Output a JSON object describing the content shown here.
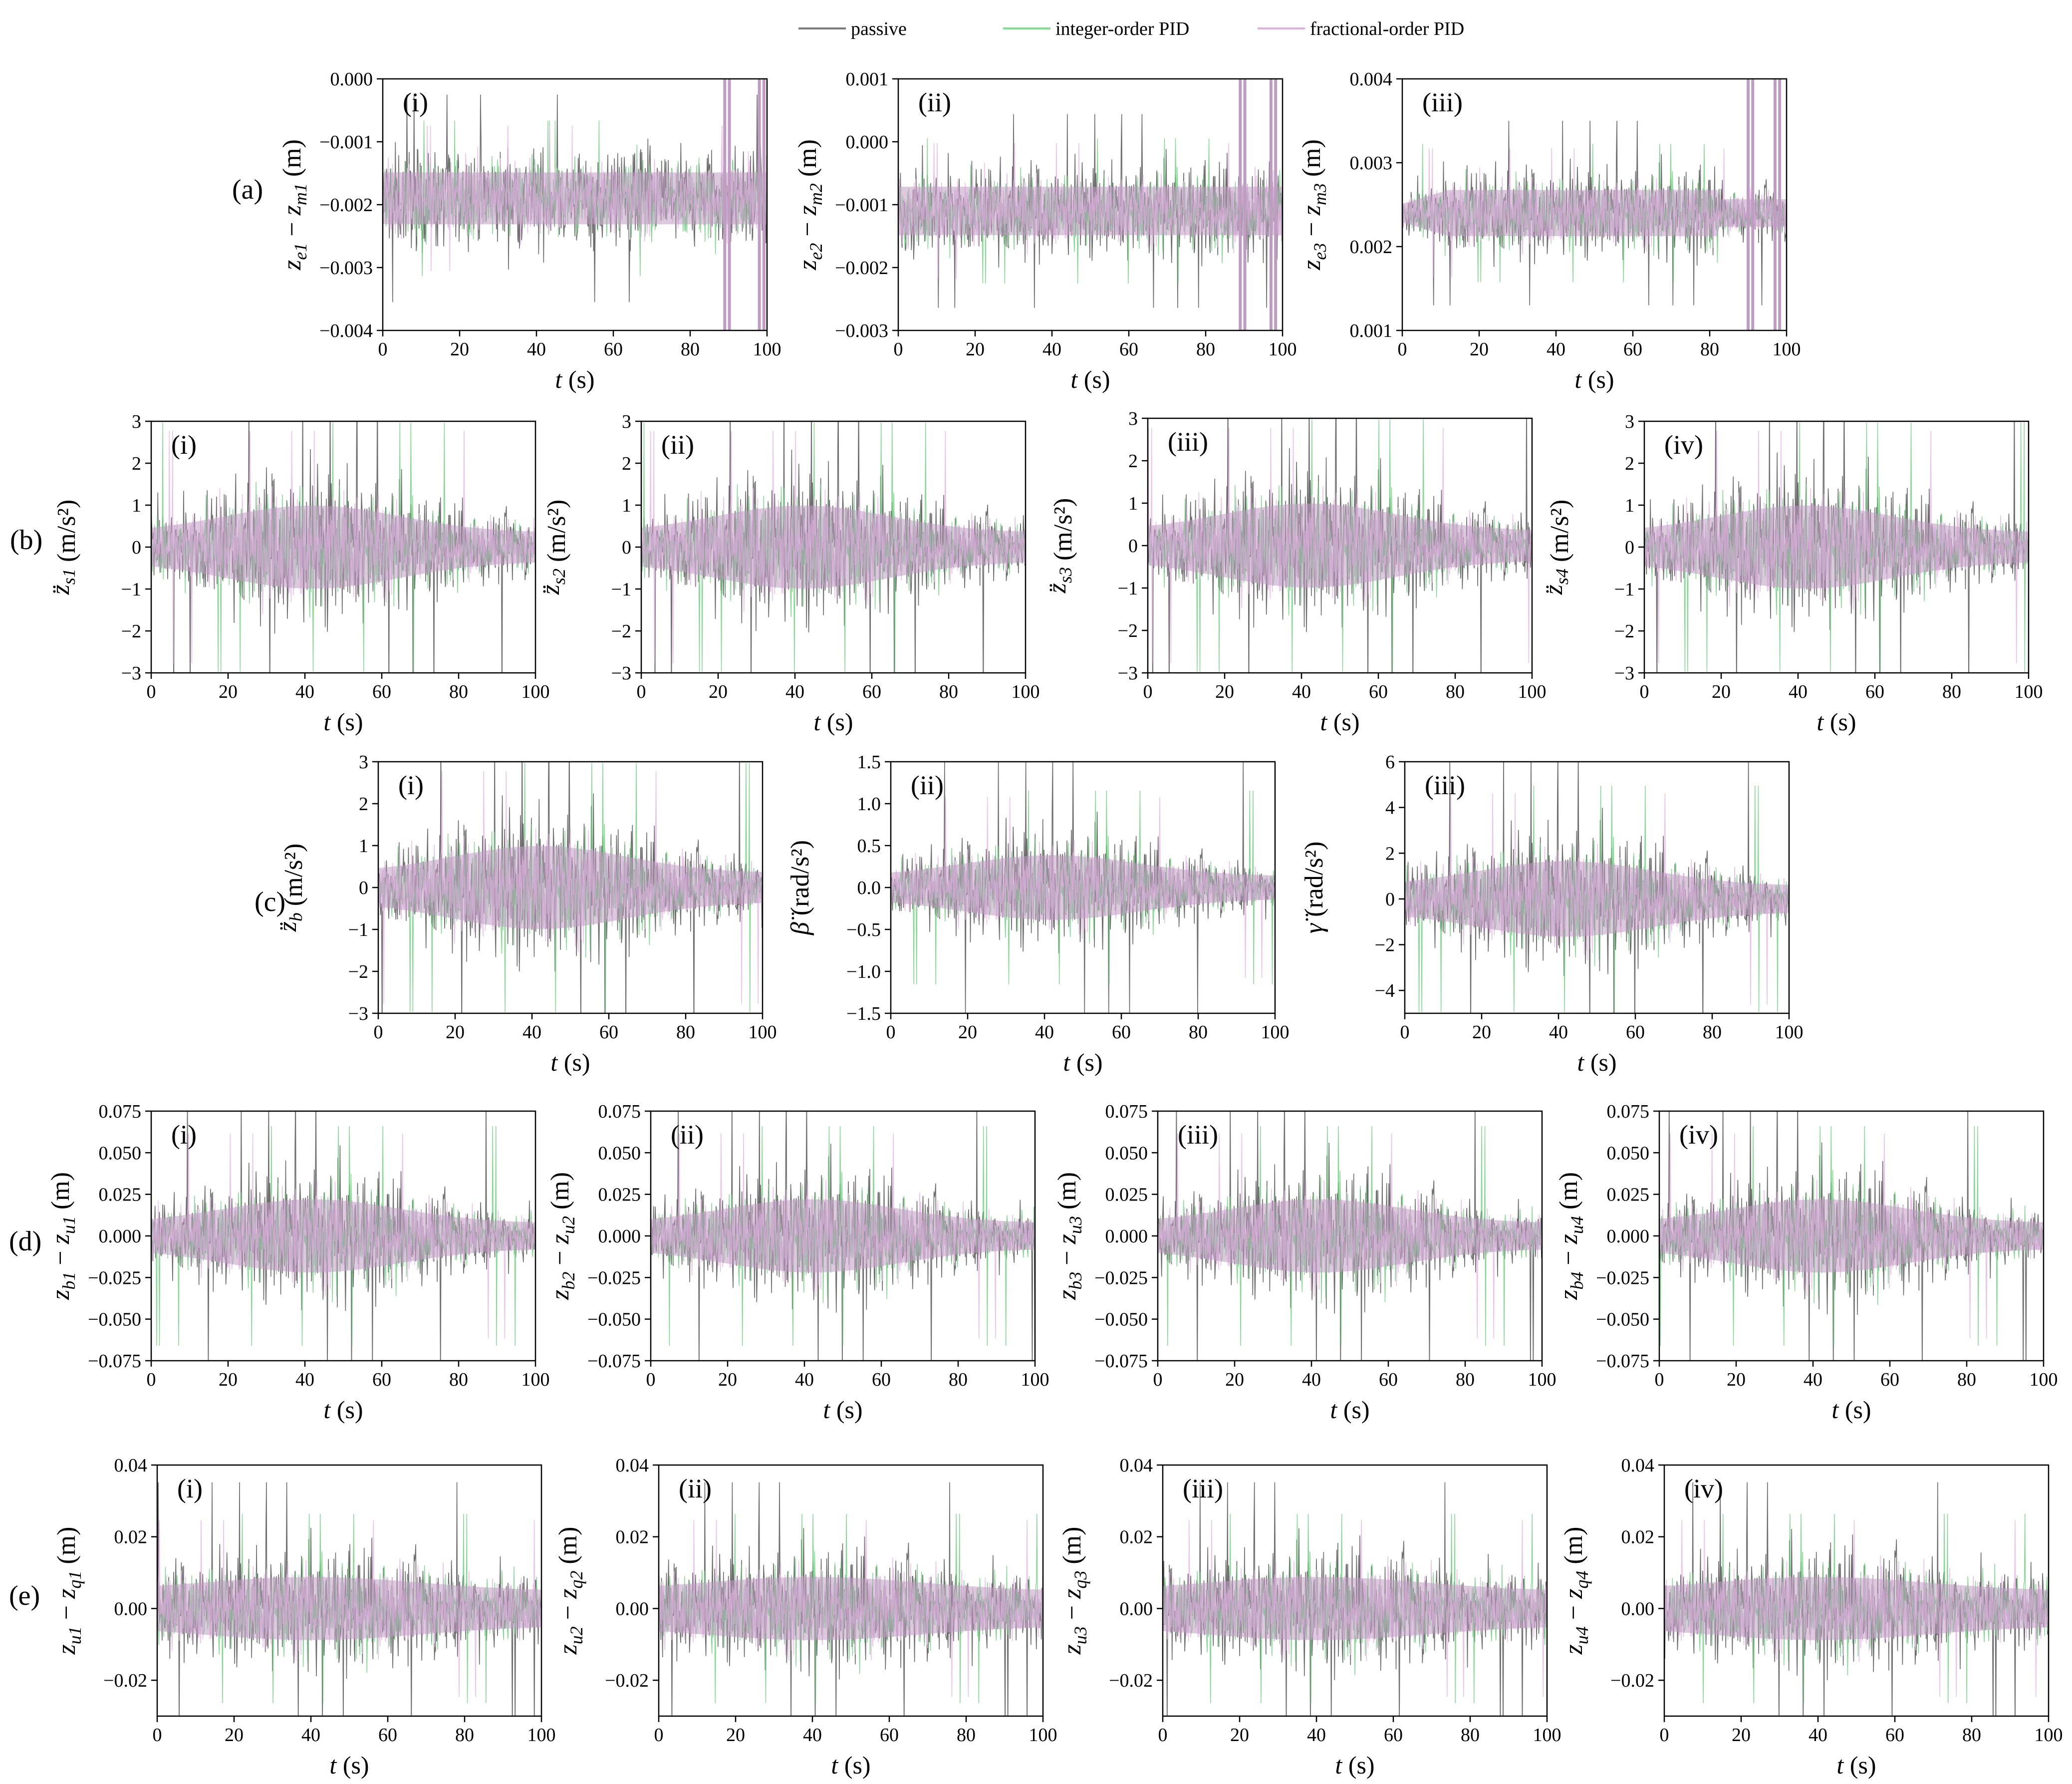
{
  "legend": [
    {
      "name": "passive",
      "color": "#7a7a7a"
    },
    {
      "name": "integer-order PID",
      "color": "#7ee08a"
    },
    {
      "name": "fractional-order PID",
      "color": "#e2aee0"
    }
  ],
  "colors": {
    "overlay": "#bf9cc2",
    "passive": "#555555",
    "green": "#6ad07a",
    "pink": "#e7b9e6"
  },
  "chart_data": [
    {
      "type": "line",
      "row": "(a)",
      "panel": "(i)",
      "ylabel": [
        "z",
        "e1",
        " − ",
        "z",
        "m1",
        " (m)"
      ],
      "xlabel": "t (s)",
      "xlim": [
        0,
        100
      ],
      "ylim": [
        -0.004,
        0.0
      ],
      "xticks": [
        "0",
        "20",
        "40",
        "60",
        "80",
        "100"
      ],
      "yticks": [
        "−0.004",
        "−0.003",
        "−0.002",
        "−0.001",
        "0.000"
      ],
      "center": -0.0019,
      "amp": 0.00075,
      "envelope": "flat",
      "spikes_at": [
        89,
        98
      ]
    },
    {
      "type": "line",
      "row": "(a)",
      "panel": "(ii)",
      "ylabel": [
        "z",
        "e2",
        " − ",
        "z",
        "m2",
        " (m)"
      ],
      "xlabel": "t (s)",
      "xlim": [
        0,
        100
      ],
      "ylim": [
        -0.003,
        0.001
      ],
      "xticks": [
        "0",
        "20",
        "40",
        "60",
        "80",
        "100"
      ],
      "yticks": [
        "−0.003",
        "−0.002",
        "−0.001",
        "0.000",
        "0.001"
      ],
      "center": -0.0011,
      "amp": 0.0007,
      "envelope": "flat",
      "spikes_at": [
        89,
        97
      ]
    },
    {
      "type": "line",
      "row": "(a)",
      "panel": "(iii)",
      "ylabel": [
        "z",
        "e3",
        " − ",
        "z",
        "m3",
        " (m)"
      ],
      "xlabel": "t (s)",
      "xlim": [
        0,
        100
      ],
      "ylim": [
        0.001,
        0.004
      ],
      "xticks": [
        "0",
        "20",
        "40",
        "60",
        "80",
        "100"
      ],
      "yticks": [
        "0.001",
        "0.002",
        "0.003",
        "0.004"
      ],
      "center": 0.0024,
      "amp": 0.0005,
      "envelope": "plateau",
      "spikes_at": [
        90,
        97
      ]
    },
    {
      "type": "line",
      "row": "(b)",
      "panel": "(i)",
      "ylabel": [
        "z̈",
        "s1",
        "",
        "",
        "",
        "  (m/s²)"
      ],
      "xlabel": "t (s)",
      "xlim": [
        0,
        100
      ],
      "ylim": [
        -3,
        3
      ],
      "xticks": [
        "0",
        "20",
        "40",
        "60",
        "80",
        "100"
      ],
      "yticks": [
        "−3",
        "−2",
        "−1",
        "0",
        "1",
        "2",
        "3"
      ],
      "center": 0,
      "amp": 1.8,
      "envelope": "bell"
    },
    {
      "type": "line",
      "row": "(b)",
      "panel": "(ii)",
      "ylabel": [
        "z̈",
        "s2",
        "",
        "",
        "",
        "  (m/s²)"
      ],
      "xlabel": "t (s)",
      "xlim": [
        0,
        100
      ],
      "ylim": [
        -3,
        3
      ],
      "xticks": [
        "0",
        "20",
        "40",
        "60",
        "80",
        "100"
      ],
      "yticks": [
        "−3",
        "−2",
        "−1",
        "0",
        "1",
        "2",
        "3"
      ],
      "center": 0,
      "amp": 1.8,
      "envelope": "bell"
    },
    {
      "type": "line",
      "row": "(b)",
      "panel": "(iii)",
      "ylabel": [
        "z̈",
        "s3",
        "",
        "",
        "",
        "  (m/s²)"
      ],
      "xlabel": "t (s)",
      "xlim": [
        0,
        100
      ],
      "ylim": [
        -3,
        3
      ],
      "xticks": [
        "0",
        "20",
        "40",
        "60",
        "80",
        "100"
      ],
      "yticks": [
        "−3",
        "−2",
        "−1",
        "0",
        "1",
        "2",
        "3"
      ],
      "center": 0,
      "amp": 1.8,
      "envelope": "bell"
    },
    {
      "type": "line",
      "row": "(b)",
      "panel": "(iv)",
      "ylabel": [
        "z̈",
        "s4",
        "",
        "",
        "",
        "  (m/s²)"
      ],
      "xlabel": "t (s)",
      "xlim": [
        0,
        100
      ],
      "ylim": [
        -3,
        3
      ],
      "xticks": [
        "0",
        "20",
        "40",
        "60",
        "80",
        "100"
      ],
      "yticks": [
        "−3",
        "−2",
        "−1",
        "0",
        "1",
        "2",
        "3"
      ],
      "center": 0,
      "amp": 1.8,
      "envelope": "bell"
    },
    {
      "type": "line",
      "row": "(c)",
      "panel": "(i)",
      "ylabel": [
        "z̈",
        "b",
        "",
        "",
        "",
        "  (m/s²)"
      ],
      "xlabel": "t (s)",
      "xlim": [
        0,
        100
      ],
      "ylim": [
        -3,
        3
      ],
      "xticks": [
        "0",
        "20",
        "40",
        "60",
        "80",
        "100"
      ],
      "yticks": [
        "−3",
        "−2",
        "−1",
        "0",
        "1",
        "2",
        "3"
      ],
      "center": 0,
      "amp": 1.8,
      "envelope": "bell"
    },
    {
      "type": "line",
      "row": "(c)",
      "panel": "(ii)",
      "ylabel": [
        "β̈",
        "",
        "",
        "",
        "",
        "  (rad/s²)"
      ],
      "xlabel": "t (s)",
      "xlim": [
        0,
        100
      ],
      "ylim": [
        -1.5,
        1.5
      ],
      "xticks": [
        "0",
        "20",
        "40",
        "60",
        "80",
        "100"
      ],
      "yticks": [
        "−1.5",
        "−1.0",
        "−0.5",
        "0.0",
        "0.5",
        "1.0",
        "1.5"
      ],
      "center": 0,
      "amp": 0.7,
      "envelope": "bell"
    },
    {
      "type": "line",
      "row": "(c)",
      "panel": "(iii)",
      "ylabel": [
        "γ̈",
        "",
        "",
        "",
        "",
        "  (rad/s²)"
      ],
      "xlabel": "t (s)",
      "xlim": [
        0,
        100
      ],
      "ylim": [
        -5,
        6
      ],
      "xticks": [
        "0",
        "20",
        "40",
        "60",
        "80",
        "100"
      ],
      "yticks": [
        "−4",
        "−2",
        "0",
        "2",
        "4",
        "6"
      ],
      "center": 0,
      "amp": 3.0,
      "envelope": "bell"
    },
    {
      "type": "line",
      "row": "(d)",
      "panel": "(i)",
      "ylabel": [
        "z",
        "b1",
        " − ",
        "z",
        "u1",
        " (m)"
      ],
      "xlabel": "t (s)",
      "xlim": [
        0,
        100
      ],
      "ylim": [
        -0.075,
        0.075
      ],
      "xticks": [
        "0",
        "20",
        "40",
        "60",
        "80",
        "100"
      ],
      "yticks": [
        "−0.075",
        "−0.050",
        "−0.025",
        "0.000",
        "0.025",
        "0.050",
        "0.075"
      ],
      "center": 0,
      "amp": 0.04,
      "envelope": "bell"
    },
    {
      "type": "line",
      "row": "(d)",
      "panel": "(ii)",
      "ylabel": [
        "z",
        "b2",
        " − ",
        "z",
        "u2",
        " (m)"
      ],
      "xlabel": "t (s)",
      "xlim": [
        0,
        100
      ],
      "ylim": [
        -0.075,
        0.075
      ],
      "xticks": [
        "0",
        "20",
        "40",
        "60",
        "80",
        "100"
      ],
      "yticks": [
        "−0.075",
        "−0.050",
        "−0.025",
        "0.000",
        "0.025",
        "0.050",
        "0.075"
      ],
      "center": 0,
      "amp": 0.04,
      "envelope": "bell"
    },
    {
      "type": "line",
      "row": "(d)",
      "panel": "(iii)",
      "ylabel": [
        "z",
        "b3",
        " − ",
        "z",
        "u3",
        " (m)"
      ],
      "xlabel": "t (s)",
      "xlim": [
        0,
        100
      ],
      "ylim": [
        -0.075,
        0.075
      ],
      "xticks": [
        "0",
        "20",
        "40",
        "60",
        "80",
        "100"
      ],
      "yticks": [
        "−0.075",
        "−0.050",
        "−0.025",
        "0.000",
        "0.025",
        "0.050",
        "0.075"
      ],
      "center": 0,
      "amp": 0.04,
      "envelope": "bell"
    },
    {
      "type": "line",
      "row": "(d)",
      "panel": "(iv)",
      "ylabel": [
        "z",
        "b4",
        " − ",
        "z",
        "u4",
        " (m)"
      ],
      "xlabel": "t (s)",
      "xlim": [
        0,
        100
      ],
      "ylim": [
        -0.075,
        0.075
      ],
      "xticks": [
        "0",
        "20",
        "40",
        "60",
        "80",
        "100"
      ],
      "yticks": [
        "−0.075",
        "−0.050",
        "−0.025",
        "0.000",
        "0.025",
        "0.050",
        "0.075"
      ],
      "center": 0,
      "amp": 0.04,
      "envelope": "bell"
    },
    {
      "type": "line",
      "row": "(e)",
      "panel": "(i)",
      "ylabel": [
        "z",
        "u1",
        " − ",
        "z",
        "q1",
        " (m)"
      ],
      "xlabel": "t (s)",
      "xlim": [
        0,
        100
      ],
      "ylim": [
        -0.03,
        0.04
      ],
      "xticks": [
        "0",
        "20",
        "40",
        "60",
        "80",
        "100"
      ],
      "yticks": [
        "−0.02",
        "0.00",
        "0.02",
        "0.04"
      ],
      "center": 0,
      "amp": 0.016,
      "envelope": "dense"
    },
    {
      "type": "line",
      "row": "(e)",
      "panel": "(ii)",
      "ylabel": [
        "z",
        "u2",
        " − ",
        "z",
        "q2",
        " (m)"
      ],
      "xlabel": "t (s)",
      "xlim": [
        0,
        100
      ],
      "ylim": [
        -0.03,
        0.04
      ],
      "xticks": [
        "0",
        "20",
        "40",
        "60",
        "80",
        "100"
      ],
      "yticks": [
        "−0.02",
        "0.00",
        "0.02",
        "0.04"
      ],
      "center": 0,
      "amp": 0.016,
      "envelope": "dense"
    },
    {
      "type": "line",
      "row": "(e)",
      "panel": "(iii)",
      "ylabel": [
        "z",
        "u3",
        " − ",
        "z",
        "q3",
        " (m)"
      ],
      "xlabel": "t (s)",
      "xlim": [
        0,
        100
      ],
      "ylim": [
        -0.03,
        0.04
      ],
      "xticks": [
        "0",
        "20",
        "40",
        "60",
        "80",
        "100"
      ],
      "yticks": [
        "−0.02",
        "0.00",
        "0.02",
        "0.04"
      ],
      "center": 0,
      "amp": 0.016,
      "envelope": "dense"
    },
    {
      "type": "line",
      "row": "(e)",
      "panel": "(iv)",
      "ylabel": [
        "z",
        "u4",
        " − ",
        "z",
        "q4",
        " (m)"
      ],
      "xlabel": "t (s)",
      "xlim": [
        0,
        100
      ],
      "ylim": [
        -0.03,
        0.04
      ],
      "xticks": [
        "0",
        "20",
        "40",
        "60",
        "80",
        "100"
      ],
      "yticks": [
        "−0.02",
        "0.00",
        "0.02",
        "0.04"
      ],
      "center": 0,
      "amp": 0.016,
      "envelope": "dense"
    }
  ]
}
